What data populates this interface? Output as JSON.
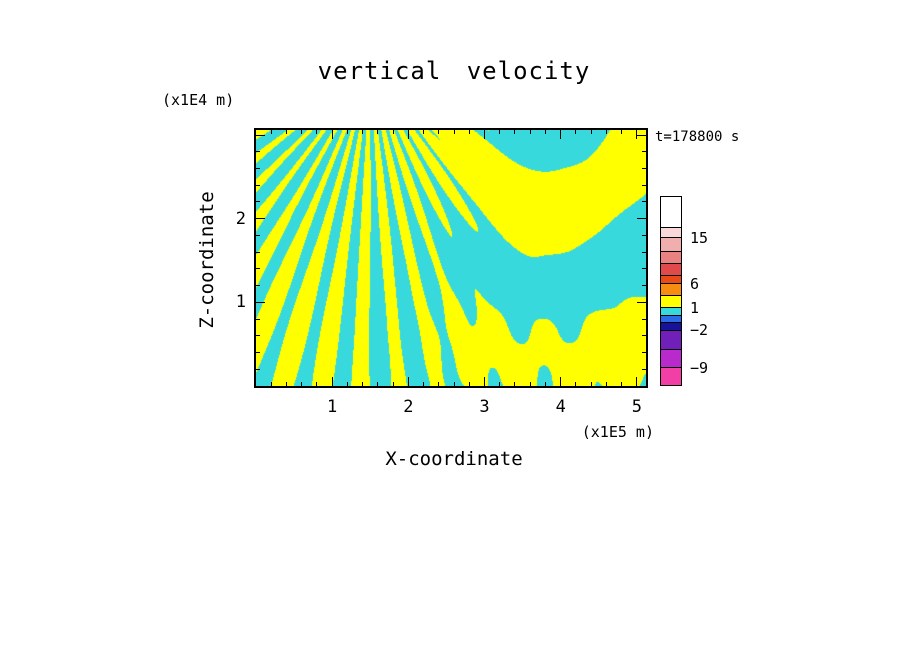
{
  "chart_data": {
    "type": "filled_contour",
    "title": "vertical velocity",
    "xlabel": "X-coordinate",
    "ylabel": "Z-coordinate",
    "x_unit_label": "(x1E5 m)",
    "y_unit_label": "(x1E4 m)",
    "annotation": "t=178800 s",
    "x_range": [
      0,
      5.12
    ],
    "y_range": [
      0,
      3.06
    ],
    "x_ticks": [
      1,
      2,
      3,
      4,
      5
    ],
    "y_ticks": [
      1,
      2
    ],
    "minor_tick_step": 0.2,
    "grid": false,
    "legend_position": "colorbar-right",
    "fill_colors": {
      "positive": "#FFFF00",
      "negative": "#38D9DC"
    },
    "colorbar": {
      "labels": [
        {
          "text": "15",
          "offset": 42
        },
        {
          "text": "6",
          "offset": 88
        },
        {
          "text": "1",
          "offset": 112
        },
        {
          "text": "−2",
          "offset": 134
        },
        {
          "text": "−9",
          "offset": 172
        }
      ],
      "segments": [
        {
          "color": "#FFFFFF",
          "h": 33
        },
        {
          "color": "#F8D8D8",
          "h": 9
        },
        {
          "color": "#F0AEAE",
          "h": 14
        },
        {
          "color": "#EA8282",
          "h": 12
        },
        {
          "color": "#E14A4A",
          "h": 12
        },
        {
          "color": "#E84A18",
          "h": 8
        },
        {
          "color": "#F78C12",
          "h": 12
        },
        {
          "color": "#FFFF00",
          "h": 12
        },
        {
          "color": "#38D9DC",
          "h": 7
        },
        {
          "color": "#2A6BE8",
          "h": 7
        },
        {
          "color": "#161299",
          "h": 8
        },
        {
          "color": "#7020B8",
          "h": 19
        },
        {
          "color": "#B82ACC",
          "h": 19
        },
        {
          "color": "#F13FA5",
          "h": 18
        }
      ]
    },
    "synthesis": {
      "fan_x": 1.5,
      "fan_z": 3.8,
      "fan_n": 48,
      "blend_x": 2.7,
      "blend_sharp": 2.5,
      "low_amp": 0.5,
      "low_kx": 2.0,
      "low_kz": 1.6,
      "ring_x": 3.85,
      "ring_z": 4.0,
      "ring_aspect": 0.85,
      "ring_k": 4.0,
      "ring_phase": 1.5,
      "ring2_amp": 0.45,
      "ring2_kx": 2.6,
      "ring2_kz": 2.2,
      "speck_amp": 0.8
    }
  }
}
